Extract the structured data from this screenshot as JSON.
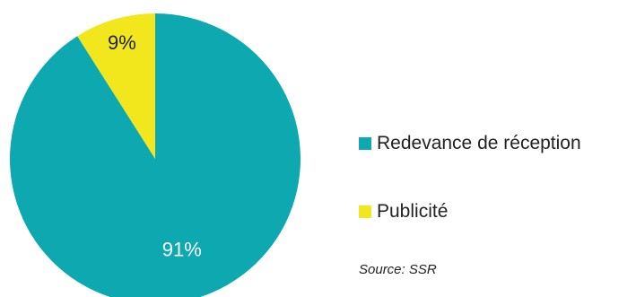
{
  "chart_data": {
    "type": "pie",
    "slices": [
      {
        "label": "Redevance de réception",
        "value": 91,
        "data_label": "91%",
        "color": "#0DA8B0"
      },
      {
        "label": "Publicité",
        "value": 9,
        "data_label": "9%",
        "color": "#F2E61C"
      }
    ],
    "legend_placement": "right",
    "source": "Source: SSR"
  }
}
